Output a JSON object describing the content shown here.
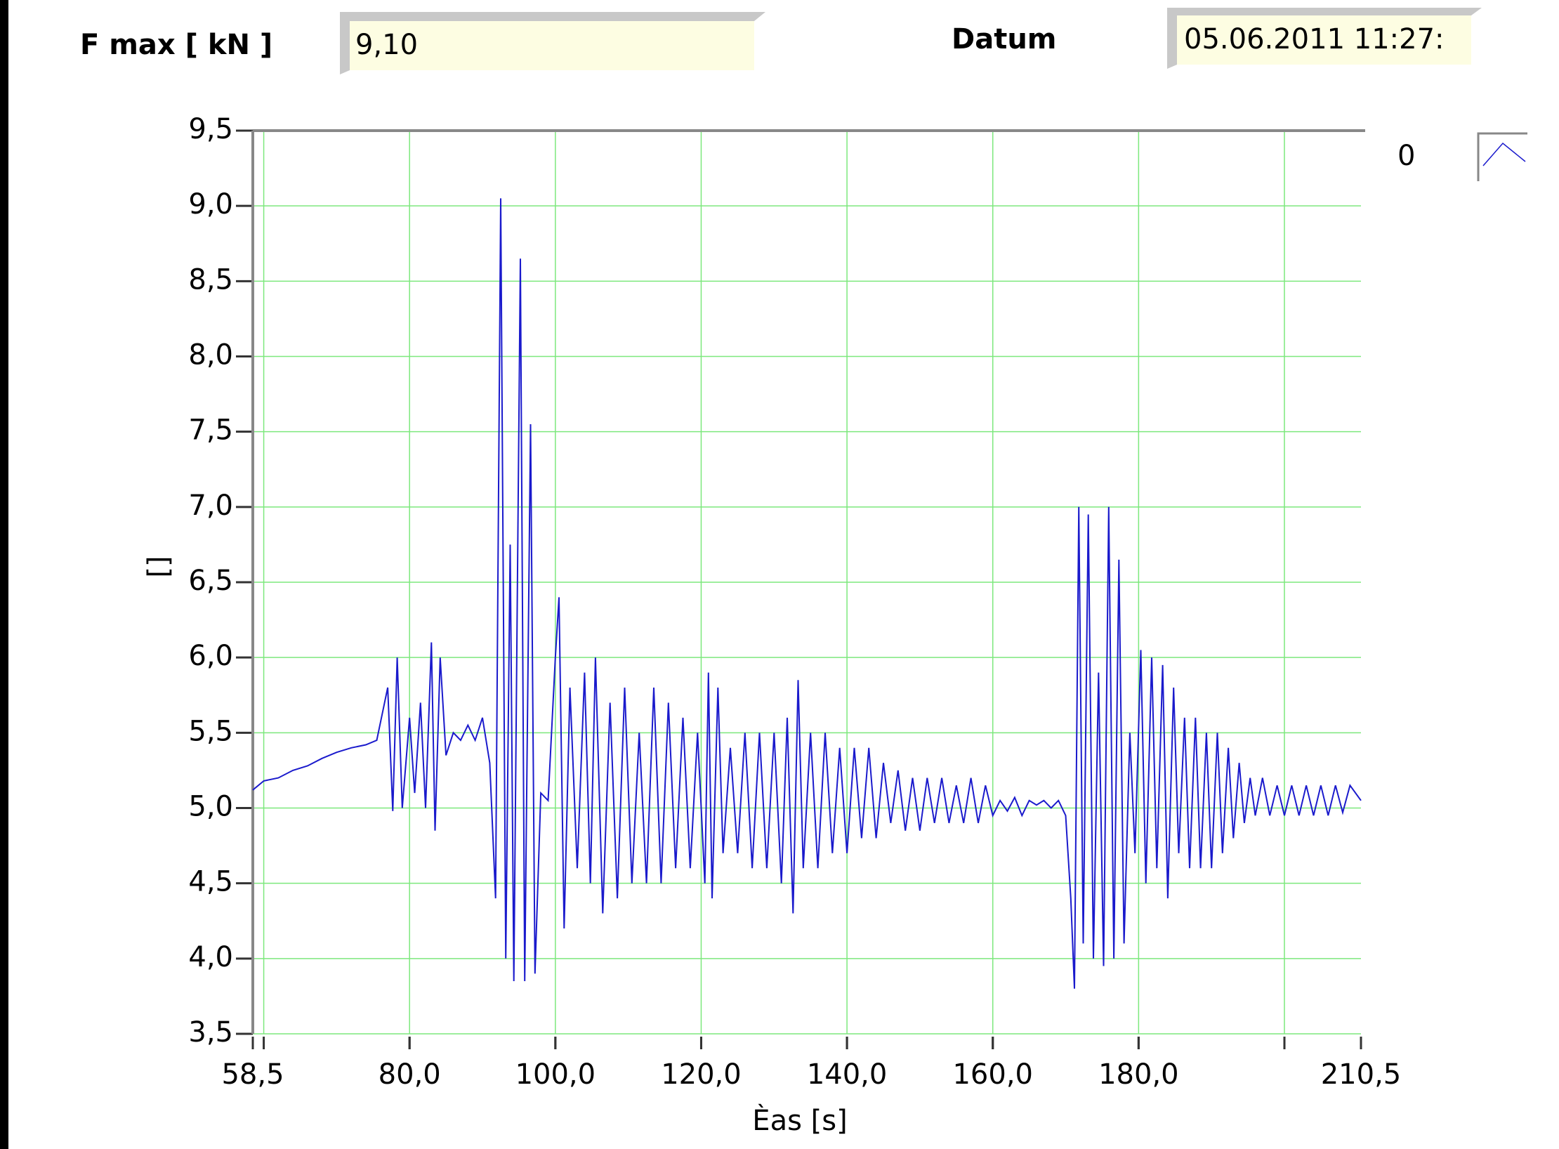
{
  "fields": [
    {
      "label": "F max [ kN ]",
      "value": "9,10"
    },
    {
      "label": "Datum",
      "value": "05.06.2011 11:27:"
    }
  ],
  "chart_data": {
    "type": "line",
    "ylabel": "[]",
    "xlabel": "Èas  [s]",
    "xlim": [
      58.5,
      210.5
    ],
    "ylim": [
      3.5,
      9.5
    ],
    "xticks": [
      {
        "value": 58.5,
        "label": "58,5"
      },
      {
        "value": 80,
        "label": "80,0"
      },
      {
        "value": 100,
        "label": "100,0"
      },
      {
        "value": 120,
        "label": "120,0"
      },
      {
        "value": 140,
        "label": "140,0"
      },
      {
        "value": 160,
        "label": "160,0"
      },
      {
        "value": 180,
        "label": "180,0"
      },
      {
        "value": 210.5,
        "label": "210,5"
      }
    ],
    "xgrid": [
      60,
      80,
      100,
      120,
      140,
      160,
      180,
      200
    ],
    "yticks": [
      {
        "value": 3.5,
        "label": "3,5"
      },
      {
        "value": 4,
        "label": "4,0"
      },
      {
        "value": 4.5,
        "label": "4,5"
      },
      {
        "value": 5,
        "label": "5,0"
      },
      {
        "value": 5.5,
        "label": "5,5"
      },
      {
        "value": 6,
        "label": "6,0"
      },
      {
        "value": 6.5,
        "label": "6,5"
      },
      {
        "value": 7,
        "label": "7,0"
      },
      {
        "value": 7.5,
        "label": "7,5"
      },
      {
        "value": 8,
        "label": "8,0"
      },
      {
        "value": 8.5,
        "label": "8,5"
      },
      {
        "value": 9,
        "label": "9,0"
      },
      {
        "value": 9.5,
        "label": "9,5"
      }
    ],
    "grid": true,
    "grid_color": "#7de87d",
    "legend": "upper right",
    "x": [
      58.5,
      60,
      62,
      64,
      66,
      68,
      70,
      72,
      74,
      75.5,
      77,
      77.7,
      78.3,
      79,
      80,
      80.7,
      81.5,
      82.2,
      83,
      83.5,
      84.2,
      85,
      86,
      87,
      88,
      89,
      90,
      91,
      91.8,
      92.5,
      93.2,
      93.8,
      94.3,
      95.2,
      95.8,
      96.6,
      97.2,
      98,
      99,
      100,
      100.5,
      101.2,
      102,
      103,
      104,
      104.8,
      105.5,
      106.5,
      107.5,
      108.5,
      109.5,
      110.5,
      111.5,
      112.5,
      113.5,
      114.5,
      115.5,
      116.5,
      117.5,
      118.5,
      119.5,
      120.5,
      121,
      121.5,
      122.3,
      123,
      124,
      125,
      126,
      127,
      128,
      129,
      130,
      131,
      131.8,
      132.6,
      133.3,
      134,
      135,
      136,
      137,
      138,
      139,
      140,
      141,
      142,
      143,
      144,
      145,
      146,
      147,
      148,
      149,
      150,
      151,
      152,
      153,
      154,
      155,
      156,
      157,
      158,
      159,
      160,
      161,
      162,
      163,
      164,
      165,
      166,
      167,
      168,
      169,
      170,
      170.7,
      171.2,
      171.8,
      172.4,
      173.1,
      173.8,
      174.5,
      175.2,
      175.9,
      176.6,
      177.3,
      178,
      178.8,
      179.5,
      180.3,
      181,
      181.8,
      182.5,
      183.3,
      184,
      184.8,
      185.5,
      186.3,
      187,
      187.8,
      188.5,
      189.3,
      190,
      190.8,
      191.5,
      192.3,
      193,
      193.8,
      194.5,
      195.3,
      196,
      197,
      198,
      199,
      200,
      201,
      202,
      203,
      204,
      205,
      206,
      207,
      208,
      209,
      210.5
    ],
    "series": [
      {
        "name": "0",
        "color": "#1a1acc",
        "values": [
          5.12,
          5.18,
          5.2,
          5.25,
          5.28,
          5.33,
          5.37,
          5.4,
          5.42,
          5.45,
          5.8,
          4.98,
          6.0,
          5.0,
          5.6,
          5.1,
          5.7,
          5.0,
          6.1,
          4.85,
          6.0,
          5.35,
          5.5,
          5.45,
          5.55,
          5.45,
          5.6,
          5.3,
          4.4,
          9.05,
          4.0,
          6.75,
          3.85,
          8.65,
          3.85,
          7.55,
          3.9,
          5.1,
          5.05,
          6.0,
          6.4,
          4.2,
          5.8,
          4.6,
          5.9,
          4.5,
          6.0,
          4.3,
          5.7,
          4.4,
          5.8,
          4.5,
          5.5,
          4.5,
          5.8,
          4.5,
          5.7,
          4.6,
          5.6,
          4.6,
          5.5,
          4.5,
          5.9,
          4.4,
          5.8,
          4.7,
          5.4,
          4.7,
          5.5,
          4.6,
          5.5,
          4.6,
          5.5,
          4.5,
          5.6,
          4.3,
          5.85,
          4.6,
          5.5,
          4.6,
          5.5,
          4.7,
          5.4,
          4.7,
          5.4,
          4.8,
          5.4,
          4.8,
          5.3,
          4.9,
          5.25,
          4.85,
          5.2,
          4.85,
          5.2,
          4.9,
          5.2,
          4.9,
          5.15,
          4.9,
          5.2,
          4.9,
          5.15,
          4.95,
          5.05,
          4.98,
          5.07,
          4.95,
          5.05,
          5.02,
          5.05,
          5.0,
          5.05,
          4.95,
          4.4,
          3.8,
          7.0,
          4.1,
          6.95,
          4.0,
          5.9,
          3.95,
          7.0,
          4.0,
          6.65,
          4.1,
          5.5,
          4.7,
          6.05,
          4.5,
          6.0,
          4.6,
          5.95,
          4.4,
          5.8,
          4.7,
          5.6,
          4.6,
          5.6,
          4.6,
          5.5,
          4.6,
          5.5,
          4.7,
          5.4,
          4.8,
          5.3,
          4.9,
          5.2,
          4.95,
          5.2,
          4.95,
          5.15,
          4.95,
          5.15,
          4.95,
          5.15,
          4.95,
          5.15,
          4.95,
          5.15,
          4.97,
          5.15,
          5.05
        ]
      }
    ]
  }
}
